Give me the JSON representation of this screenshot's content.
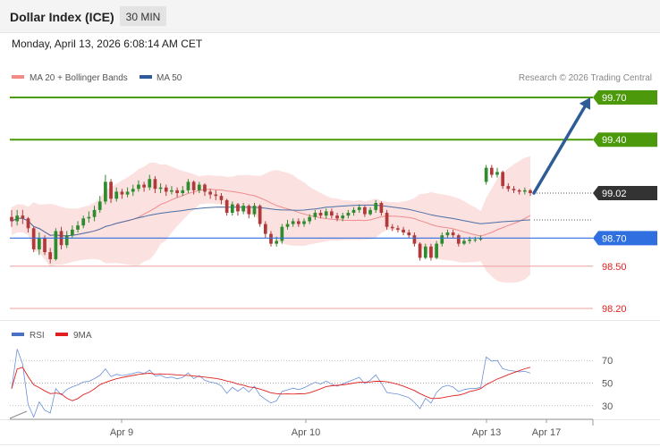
{
  "header": {
    "title": "Dollar Index (ICE)",
    "timeframe": "30 MIN",
    "datetime": "Monday, April 13, 2026 6:08:14 AM CET"
  },
  "legend": {
    "items": [
      {
        "label": "MA 20 + Bollinger Bands",
        "color": "#f28b86"
      },
      {
        "label": "MA 50",
        "color": "#2f5b9a"
      }
    ],
    "credit": "Research © 2026 Trading Central"
  },
  "rsi_legend": {
    "items": [
      {
        "label": "RSI",
        "color": "#4a72c4"
      },
      {
        "label": "9MA",
        "color": "#e02020"
      }
    ]
  },
  "colors": {
    "bull": "#2e8b2e",
    "bear": "#b03a3a",
    "bb_fill": "#fbd9d9",
    "ma20": "#ef8c8c",
    "ma50": "#4a6fa5",
    "green_level": "#4c9a0c",
    "blue_level": "#2f6fe0",
    "red_level": "#e9a0a0",
    "dark_label": "#333333",
    "arrow": "#2d5c96"
  },
  "chart_data": {
    "type": "candlestick",
    "ylim": [
      98.13,
      99.77
    ],
    "x_ticks": [
      "Apr 9",
      "Apr 10",
      "Apr 13",
      "Apr 17"
    ],
    "levels": [
      {
        "value": 99.7,
        "label": "99.70",
        "kind": "resistance"
      },
      {
        "value": 99.4,
        "label": "99.40",
        "kind": "resistance"
      },
      {
        "value": 99.02,
        "label": "99.02",
        "kind": "last"
      },
      {
        "value": 98.7,
        "label": "98.70",
        "kind": "support"
      },
      {
        "value": 98.5,
        "label": "98.50",
        "kind": "minor"
      },
      {
        "value": 98.2,
        "label": "98.20",
        "kind": "minor"
      }
    ],
    "candles": [
      [
        98.85,
        98.82,
        98.9,
        98.78
      ],
      [
        98.82,
        98.86,
        98.9,
        98.79
      ],
      [
        98.86,
        98.84,
        98.9,
        98.8
      ],
      [
        98.84,
        98.77,
        98.85,
        98.74
      ],
      [
        98.77,
        98.62,
        98.78,
        98.6
      ],
      [
        98.62,
        98.7,
        98.74,
        98.58
      ],
      [
        98.7,
        98.6,
        98.72,
        98.58
      ],
      [
        98.6,
        98.55,
        98.63,
        98.52
      ],
      [
        98.55,
        98.75,
        98.77,
        98.54
      ],
      [
        98.75,
        98.65,
        98.78,
        98.62
      ],
      [
        98.65,
        98.72,
        98.75,
        98.63
      ],
      [
        98.72,
        98.76,
        98.79,
        98.7
      ],
      [
        98.76,
        98.79,
        98.82,
        98.74
      ],
      [
        98.79,
        98.84,
        98.86,
        98.77
      ],
      [
        98.84,
        98.85,
        98.89,
        98.81
      ],
      [
        98.85,
        98.9,
        98.93,
        98.82
      ],
      [
        98.9,
        98.96,
        99.0,
        98.88
      ],
      [
        98.96,
        99.1,
        99.15,
        98.94
      ],
      [
        99.1,
        98.98,
        99.12,
        98.95
      ],
      [
        98.98,
        99.03,
        99.06,
        98.96
      ],
      [
        99.03,
        99.01,
        99.05,
        98.98
      ],
      [
        99.01,
        99.03,
        99.06,
        98.99
      ],
      [
        99.03,
        99.05,
        99.08,
        99.0
      ],
      [
        99.05,
        99.08,
        99.11,
        99.03
      ],
      [
        99.08,
        99.06,
        99.1,
        99.03
      ],
      [
        99.06,
        99.12,
        99.15,
        99.04
      ],
      [
        99.12,
        99.05,
        99.14,
        99.02
      ],
      [
        99.05,
        99.06,
        99.09,
        99.02
      ],
      [
        99.06,
        99.03,
        99.08,
        99.0
      ],
      [
        99.03,
        99.04,
        99.07,
        99.01
      ],
      [
        99.04,
        99.02,
        99.06,
        98.99
      ],
      [
        99.02,
        99.04,
        99.07,
        99.0
      ],
      [
        99.04,
        99.1,
        99.12,
        99.02
      ],
      [
        99.1,
        99.04,
        99.11,
        99.01
      ],
      [
        99.04,
        99.08,
        99.1,
        99.02
      ],
      [
        99.08,
        99.03,
        99.09,
        99.0
      ],
      [
        99.03,
        99.01,
        99.05,
        98.98
      ],
      [
        99.01,
        99.0,
        99.04,
        98.97
      ],
      [
        99.0,
        98.97,
        99.02,
        98.94
      ],
      [
        98.97,
        98.88,
        98.98,
        98.86
      ],
      [
        98.88,
        98.94,
        98.96,
        98.86
      ],
      [
        98.94,
        98.89,
        98.95,
        98.86
      ],
      [
        98.89,
        98.93,
        98.95,
        98.87
      ],
      [
        98.93,
        98.87,
        98.94,
        98.84
      ],
      [
        98.87,
        98.93,
        98.95,
        98.85
      ],
      [
        98.93,
        98.8,
        98.94,
        98.78
      ],
      [
        98.8,
        98.73,
        98.82,
        98.7
      ],
      [
        98.73,
        98.66,
        98.75,
        98.64
      ],
      [
        98.66,
        98.68,
        98.71,
        98.64
      ],
      [
        98.68,
        98.78,
        98.8,
        98.66
      ],
      [
        98.78,
        98.8,
        98.83,
        98.76
      ],
      [
        98.8,
        98.82,
        98.84,
        98.78
      ],
      [
        98.82,
        98.8,
        98.84,
        98.78
      ],
      [
        98.8,
        98.82,
        98.84,
        98.78
      ],
      [
        98.82,
        98.85,
        98.87,
        98.8
      ],
      [
        98.85,
        98.88,
        98.9,
        98.83
      ],
      [
        98.88,
        98.86,
        98.9,
        98.84
      ],
      [
        98.86,
        98.89,
        98.91,
        98.84
      ],
      [
        98.89,
        98.86,
        98.91,
        98.84
      ],
      [
        98.86,
        98.84,
        98.88,
        98.82
      ],
      [
        98.84,
        98.86,
        98.88,
        98.82
      ],
      [
        98.86,
        98.88,
        98.9,
        98.84
      ],
      [
        98.88,
        98.9,
        98.92,
        98.86
      ],
      [
        98.9,
        98.92,
        98.94,
        98.88
      ],
      [
        98.92,
        98.87,
        98.93,
        98.85
      ],
      [
        98.87,
        98.9,
        98.92,
        98.86
      ],
      [
        98.9,
        98.95,
        98.97,
        98.88
      ],
      [
        98.95,
        98.88,
        98.96,
        98.86
      ],
      [
        98.88,
        98.78,
        98.9,
        98.76
      ],
      [
        98.78,
        98.77,
        98.8,
        98.75
      ],
      [
        98.77,
        98.76,
        98.79,
        98.74
      ],
      [
        98.76,
        98.74,
        98.78,
        98.72
      ],
      [
        98.74,
        98.72,
        98.76,
        98.7
      ],
      [
        98.72,
        98.66,
        98.74,
        98.64
      ],
      [
        98.66,
        98.56,
        98.67,
        98.54
      ],
      [
        98.56,
        98.64,
        98.66,
        98.55
      ],
      [
        98.64,
        98.56,
        98.66,
        98.54
      ],
      [
        98.56,
        98.66,
        98.68,
        98.55
      ],
      [
        98.66,
        98.72,
        98.74,
        98.64
      ],
      [
        98.72,
        98.74,
        98.76,
        98.7
      ],
      [
        98.74,
        98.72,
        98.76,
        98.7
      ],
      [
        98.72,
        98.66,
        98.73,
        98.64
      ],
      [
        98.66,
        98.68,
        98.7,
        98.65
      ],
      [
        98.68,
        98.69,
        98.71,
        98.66
      ],
      [
        98.69,
        98.69,
        98.71,
        98.67
      ],
      [
        98.69,
        98.7,
        98.72,
        98.68
      ],
      [
        99.1,
        99.2,
        99.22,
        99.08
      ],
      [
        99.2,
        99.15,
        99.22,
        99.13
      ],
      [
        99.15,
        99.17,
        99.2,
        99.13
      ],
      [
        99.17,
        99.07,
        99.18,
        99.05
      ],
      [
        99.07,
        99.05,
        99.09,
        99.03
      ],
      [
        99.05,
        99.04,
        99.07,
        99.02
      ],
      [
        99.04,
        99.03,
        99.05,
        99.01
      ],
      [
        99.03,
        99.04,
        99.06,
        99.01
      ],
      [
        99.04,
        99.02,
        99.05,
        99.0
      ]
    ],
    "series": [
      {
        "name": "MA 20 + Bollinger Bands",
        "type": "ma20_bb"
      },
      {
        "name": "MA 50",
        "type": "ma50"
      }
    ],
    "forecast": {
      "from": 99.02,
      "to": 99.7
    }
  },
  "rsi_data": {
    "ylim": [
      18,
      82
    ],
    "ticks": [
      30,
      50,
      70
    ],
    "tick_labels": [
      "30",
      "50",
      "70"
    ]
  }
}
